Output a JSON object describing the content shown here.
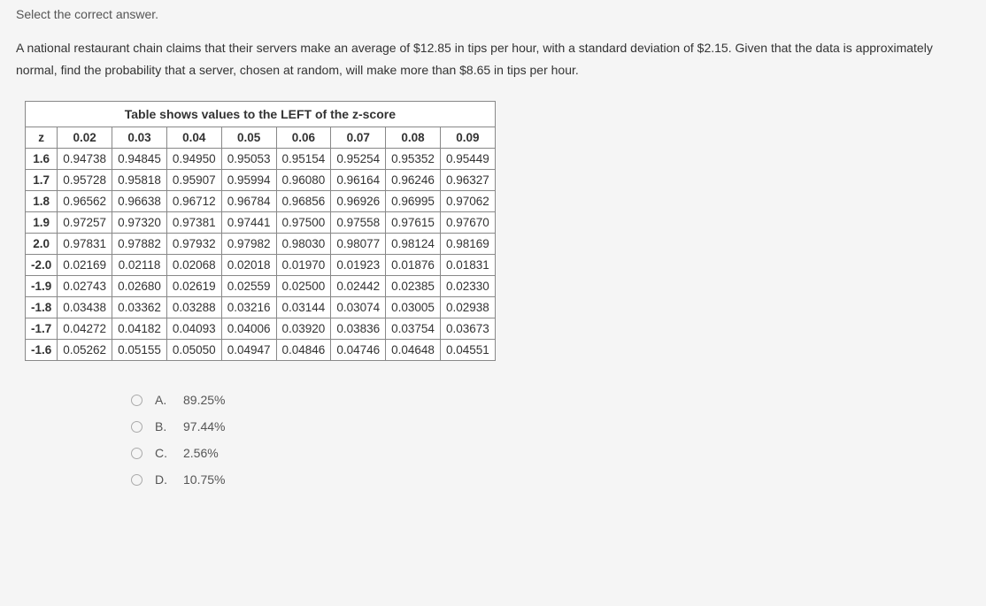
{
  "instruction": "Select the correct answer.",
  "prompt": "A national restaurant chain claims that their servers make an average of $12.85 in tips per hour, with a standard deviation of $2.15. Given that the data is approximately normal, find the probability that a server, chosen at random, will make more than $8.65 in tips per hour.",
  "table": {
    "caption": "Table shows values to the LEFT of the z-score",
    "header": [
      "z",
      "0.02",
      "0.03",
      "0.04",
      "0.05",
      "0.06",
      "0.07",
      "0.08",
      "0.09"
    ],
    "rows": [
      [
        "1.6",
        "0.94738",
        "0.94845",
        "0.94950",
        "0.95053",
        "0.95154",
        "0.95254",
        "0.95352",
        "0.95449"
      ],
      [
        "1.7",
        "0.95728",
        "0.95818",
        "0.95907",
        "0.95994",
        "0.96080",
        "0.96164",
        "0.96246",
        "0.96327"
      ],
      [
        "1.8",
        "0.96562",
        "0.96638",
        "0.96712",
        "0.96784",
        "0.96856",
        "0.96926",
        "0.96995",
        "0.97062"
      ],
      [
        "1.9",
        "0.97257",
        "0.97320",
        "0.97381",
        "0.97441",
        "0.97500",
        "0.97558",
        "0.97615",
        "0.97670"
      ],
      [
        "2.0",
        "0.97831",
        "0.97882",
        "0.97932",
        "0.97982",
        "0.98030",
        "0.98077",
        "0.98124",
        "0.98169"
      ],
      [
        "-2.0",
        "0.02169",
        "0.02118",
        "0.02068",
        "0.02018",
        "0.01970",
        "0.01923",
        "0.01876",
        "0.01831"
      ],
      [
        "-1.9",
        "0.02743",
        "0.02680",
        "0.02619",
        "0.02559",
        "0.02500",
        "0.02442",
        "0.02385",
        "0.02330"
      ],
      [
        "-1.8",
        "0.03438",
        "0.03362",
        "0.03288",
        "0.03216",
        "0.03144",
        "0.03074",
        "0.03005",
        "0.02938"
      ],
      [
        "-1.7",
        "0.04272",
        "0.04182",
        "0.04093",
        "0.04006",
        "0.03920",
        "0.03836",
        "0.03754",
        "0.03673"
      ],
      [
        "-1.6",
        "0.05262",
        "0.05155",
        "0.05050",
        "0.04947",
        "0.04846",
        "0.04746",
        "0.04648",
        "0.04551"
      ]
    ]
  },
  "options": [
    {
      "letter": "A.",
      "text": "89.25%"
    },
    {
      "letter": "B.",
      "text": "97.44%"
    },
    {
      "letter": "C.",
      "text": "2.56%"
    },
    {
      "letter": "D.",
      "text": "10.75%"
    }
  ]
}
